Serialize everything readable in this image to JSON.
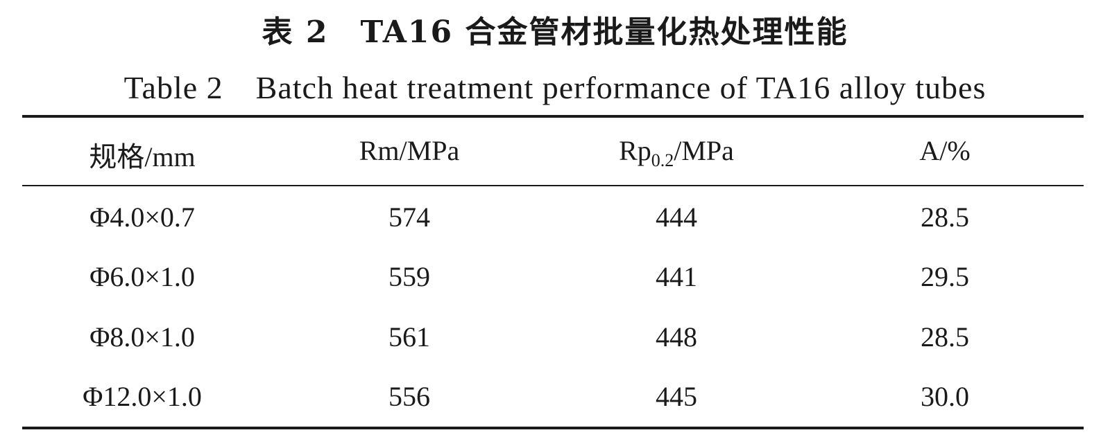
{
  "caption": {
    "title_cn": "表 2　TA16 合金管材批量化热处理性能",
    "title_en": "Table 2　Batch heat treatment performance of TA16 alloy tubes"
  },
  "table": {
    "headers": [
      "规格/mm",
      "Rm/MPa",
      "Rp",
      "A/%"
    ],
    "header_rp_subscript": "0.2",
    "header_rp_unit": "/MPa",
    "rows": [
      [
        "Φ4.0×0.7",
        "574",
        "444",
        "28.5"
      ],
      [
        "Φ6.0×1.0",
        "559",
        "441",
        "29.5"
      ],
      [
        "Φ8.0×1.0",
        "561",
        "448",
        "28.5"
      ],
      [
        "Φ12.0×1.0",
        "556",
        "445",
        "30.0"
      ]
    ]
  }
}
